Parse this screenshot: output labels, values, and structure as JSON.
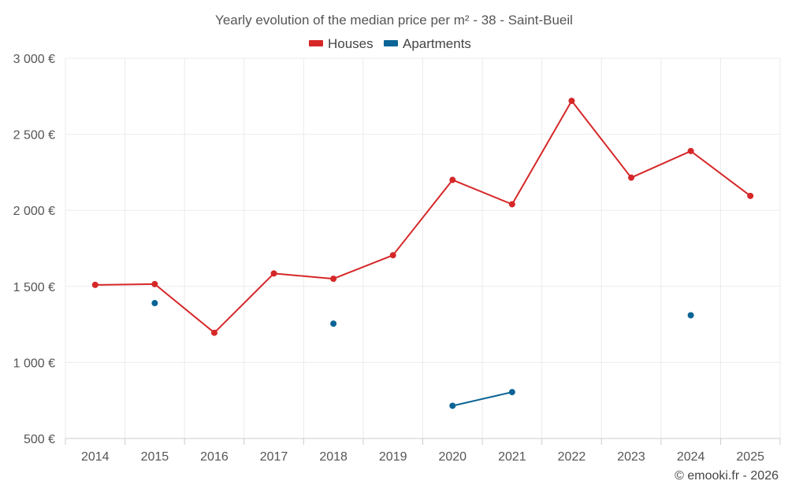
{
  "chart_data": {
    "type": "line",
    "title": "Yearly evolution of the median price per m² - 38 - Saint-Bueil",
    "categories": [
      "2014",
      "2015",
      "2016",
      "2017",
      "2018",
      "2019",
      "2020",
      "2021",
      "2022",
      "2023",
      "2024",
      "2025"
    ],
    "ylim": [
      500,
      3000
    ],
    "yticks": [
      500,
      1000,
      1500,
      2000,
      2500,
      3000
    ],
    "ytick_labels": [
      "500 €",
      "1 000 €",
      "1 500 €",
      "2 000 €",
      "2 500 €",
      "3 000 €"
    ],
    "xlabel": "",
    "ylabel": "",
    "grid": true,
    "legend_position": "top-center",
    "series": [
      {
        "name": "Houses",
        "color": "#d62728",
        "values": [
          1510,
          1515,
          1195,
          1585,
          1550,
          1705,
          2200,
          2040,
          2720,
          2215,
          2390,
          2095
        ]
      },
      {
        "name": "Apartments",
        "color": "#0a6496",
        "values": [
          null,
          1390,
          null,
          null,
          1255,
          null,
          715,
          805,
          null,
          null,
          1310,
          null
        ]
      }
    ],
    "credit": "© emooki.fr - 2026"
  }
}
